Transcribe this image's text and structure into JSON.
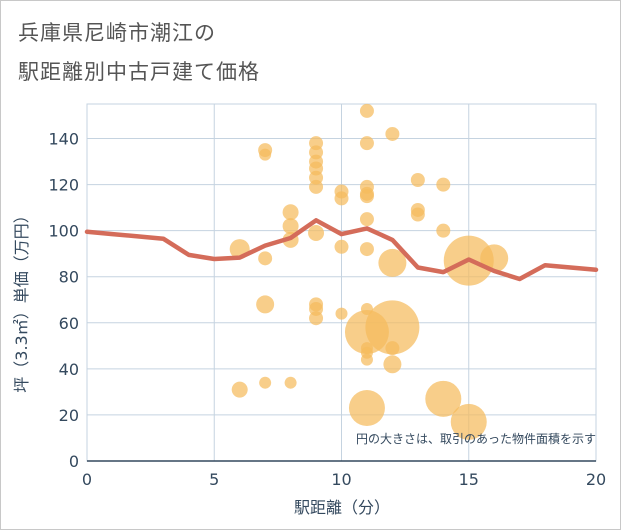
{
  "title_lines": [
    "兵庫県尼崎市潮江の",
    "駅距離別中古戸建て価格"
  ],
  "colors": {
    "bubble": "#f5bb5d",
    "line": "#d46c5a",
    "grid": "#c5d3e0",
    "axis_text": "#34495e",
    "title": "#555555"
  },
  "chart_data": {
    "type": "scatter",
    "title": "兵庫県尼崎市潮江の駅距離別中古戸建て価格",
    "xlabel": "駅距離（分）",
    "ylabel": "坪（3.3㎡）単価（万円）",
    "xlim": [
      0,
      20
    ],
    "ylim": [
      0,
      155
    ],
    "x_ticks": [
      "0",
      "5",
      "10",
      "15",
      "20"
    ],
    "y_ticks": [
      "0",
      "20",
      "40",
      "60",
      "80",
      "100",
      "120",
      "140"
    ],
    "note": "円の大きさは、取引のあった物件面積を示す",
    "grid": true,
    "series": [
      {
        "kind": "bubble",
        "points": [
          {
            "x": 6,
            "y": 92,
            "s": 10
          },
          {
            "x": 6,
            "y": 31,
            "s": 8
          },
          {
            "x": 7,
            "y": 135,
            "s": 7
          },
          {
            "x": 7,
            "y": 133,
            "s": 6
          },
          {
            "x": 7,
            "y": 88,
            "s": 7
          },
          {
            "x": 7,
            "y": 68,
            "s": 9
          },
          {
            "x": 7,
            "y": 34,
            "s": 6
          },
          {
            "x": 8,
            "y": 108,
            "s": 8
          },
          {
            "x": 8,
            "y": 102,
            "s": 8
          },
          {
            "x": 8,
            "y": 96,
            "s": 8
          },
          {
            "x": 8,
            "y": 34,
            "s": 6
          },
          {
            "x": 9,
            "y": 138,
            "s": 7
          },
          {
            "x": 9,
            "y": 134,
            "s": 7
          },
          {
            "x": 9,
            "y": 130,
            "s": 7
          },
          {
            "x": 9,
            "y": 127,
            "s": 7
          },
          {
            "x": 9,
            "y": 123,
            "s": 7
          },
          {
            "x": 9,
            "y": 119,
            "s": 7
          },
          {
            "x": 9,
            "y": 99,
            "s": 8
          },
          {
            "x": 9,
            "y": 68,
            "s": 7
          },
          {
            "x": 9,
            "y": 66,
            "s": 7
          },
          {
            "x": 9,
            "y": 62,
            "s": 7
          },
          {
            "x": 10,
            "y": 117,
            "s": 7
          },
          {
            "x": 10,
            "y": 114,
            "s": 7
          },
          {
            "x": 10,
            "y": 93,
            "s": 7
          },
          {
            "x": 10,
            "y": 64,
            "s": 6
          },
          {
            "x": 11,
            "y": 152,
            "s": 7
          },
          {
            "x": 11,
            "y": 138,
            "s": 7
          },
          {
            "x": 11,
            "y": 119,
            "s": 7
          },
          {
            "x": 11,
            "y": 116,
            "s": 7
          },
          {
            "x": 11,
            "y": 115,
            "s": 7
          },
          {
            "x": 11,
            "y": 105,
            "s": 7
          },
          {
            "x": 11,
            "y": 92,
            "s": 7
          },
          {
            "x": 11,
            "y": 66,
            "s": 6
          },
          {
            "x": 11,
            "y": 56,
            "s": 22
          },
          {
            "x": 11,
            "y": 49,
            "s": 6
          },
          {
            "x": 11,
            "y": 47,
            "s": 6
          },
          {
            "x": 11,
            "y": 44,
            "s": 6
          },
          {
            "x": 11,
            "y": 23,
            "s": 18
          },
          {
            "x": 12,
            "y": 142,
            "s": 7
          },
          {
            "x": 12,
            "y": 86,
            "s": 14
          },
          {
            "x": 12,
            "y": 58,
            "s": 27
          },
          {
            "x": 12,
            "y": 49,
            "s": 7
          },
          {
            "x": 12,
            "y": 42,
            "s": 9
          },
          {
            "x": 13,
            "y": 122,
            "s": 7
          },
          {
            "x": 13,
            "y": 109,
            "s": 7
          },
          {
            "x": 13,
            "y": 107,
            "s": 7
          },
          {
            "x": 14,
            "y": 120,
            "s": 7
          },
          {
            "x": 14,
            "y": 100,
            "s": 7
          },
          {
            "x": 14,
            "y": 27,
            "s": 18
          },
          {
            "x": 15,
            "y": 87,
            "s": 25
          },
          {
            "x": 15,
            "y": 17,
            "s": 18
          },
          {
            "x": 16,
            "y": 88,
            "s": 14
          }
        ]
      },
      {
        "kind": "line",
        "x": [
          0,
          1,
          2,
          3,
          4,
          5,
          6,
          7,
          8,
          9,
          10,
          11,
          12,
          13,
          14,
          15,
          16,
          17,
          18,
          19,
          20
        ],
        "y": [
          99.5,
          98.5,
          97.5,
          96.5,
          89.5,
          87.7,
          88.3,
          93.5,
          96.8,
          104.5,
          98.5,
          101,
          96,
          84,
          82,
          87.5,
          82.5,
          79,
          85,
          84,
          83
        ]
      }
    ]
  }
}
